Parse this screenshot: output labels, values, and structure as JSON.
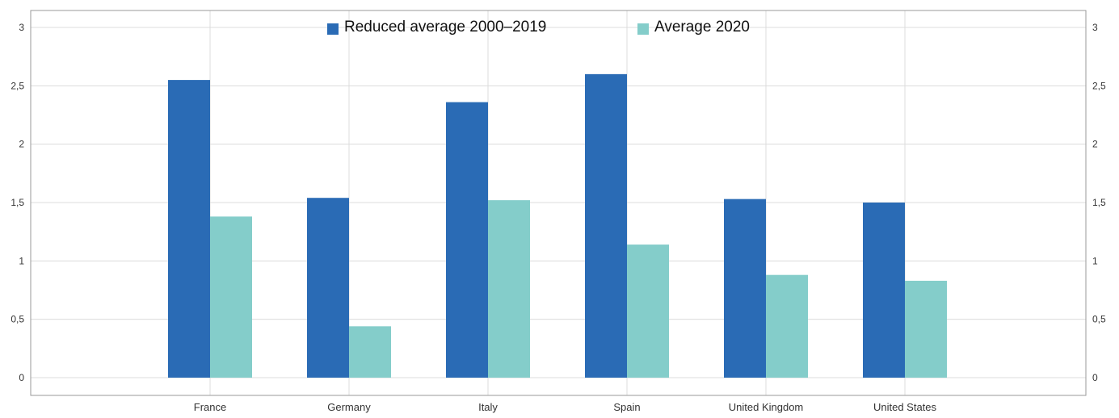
{
  "chart_data": {
    "type": "bar",
    "categories": [
      "France",
      "Germany",
      "Italy",
      "Spain",
      "United Kingdom",
      "United States"
    ],
    "series": [
      {
        "name": "Reduced average 2000–2019",
        "values": [
          2.55,
          1.54,
          2.36,
          2.6,
          1.53,
          1.5
        ],
        "color": "#2a6bb5"
      },
      {
        "name": "Average 2020",
        "values": [
          1.38,
          0.44,
          1.52,
          1.14,
          0.88,
          0.83
        ],
        "color": "#84cdca"
      }
    ],
    "y_ticks": [
      "0",
      "0,5",
      "1",
      "1,5",
      "2",
      "2,5",
      "3"
    ],
    "y_tick_values": [
      0,
      0.5,
      1,
      1.5,
      2,
      2.5,
      3
    ],
    "ylim": [
      0,
      3
    ],
    "y_axis_sides": "left and right",
    "grid": true,
    "legend_position": "top-center"
  }
}
